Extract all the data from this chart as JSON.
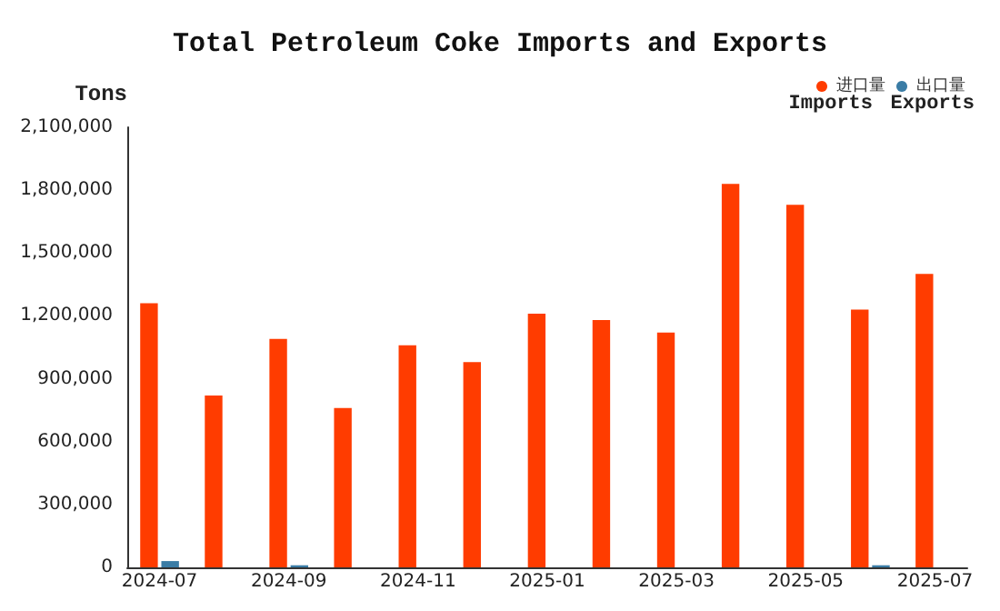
{
  "chart_data": {
    "type": "bar",
    "title": "Total Petroleum Coke Imports and Exports",
    "ylabel": "Tons",
    "categories": [
      "2024-07",
      null,
      "2024-09",
      null,
      "2024-11",
      null,
      "2025-01",
      null,
      "2025-03",
      null,
      "2025-05",
      null,
      "2025-07"
    ],
    "series": [
      {
        "name": "进口量",
        "color": "#ff3c00",
        "values": [
          1260000,
          820000,
          1090000,
          760000,
          1060000,
          980000,
          1210000,
          1180000,
          1120000,
          1830000,
          1730000,
          1230000,
          1400000
        ]
      },
      {
        "name": "出口量",
        "color": "#3a7ca5",
        "values": [
          30000,
          0,
          10000,
          0,
          0,
          0,
          0,
          0,
          0,
          0,
          0,
          10000,
          0
        ]
      }
    ],
    "annotations": [
      "Imports",
      "Exports"
    ],
    "ylim": [
      0,
      2100000
    ],
    "yticks": [
      0,
      {
        "value": 300000,
        "label": "300,000"
      },
      {
        "value": 600000,
        "label": "600,000"
      },
      {
        "value": 900000,
        "label": "900,000"
      },
      {
        "value": 1200000,
        "label": "1,200,000"
      },
      {
        "value": 1500000,
        "label": "1,500,000"
      },
      {
        "value": 1800000,
        "label": "1,800,000"
      },
      {
        "value": 2100000,
        "label": "2,100,000"
      }
    ],
    "grid": false,
    "legend": "top right",
    "marker": "circle"
  }
}
